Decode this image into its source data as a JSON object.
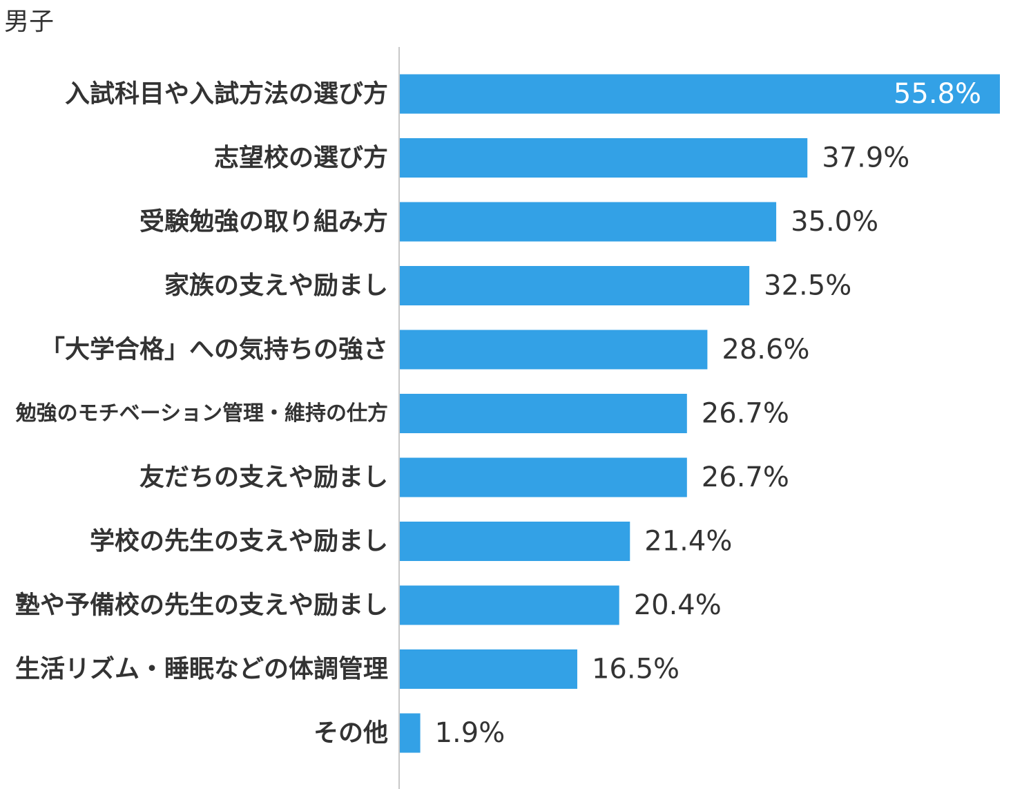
{
  "chart_data": {
    "type": "bar",
    "orientation": "horizontal",
    "title": "男子",
    "categories": [
      "入試科目や入試方法の選び方",
      "志望校の選び方",
      "受験勉強の取り組み方",
      "家族の支えや励まし",
      "「大学合格」への気持ちの強さ",
      "勉強のモチベーション管理・維持の仕方",
      "友だちの支えや励まし",
      "学校の先生の支えや励まし",
      "塾や予備校の先生の支えや励まし",
      "生活リズム・睡眠などの体調管理",
      "その他"
    ],
    "values": [
      55.8,
      37.9,
      35.0,
      32.5,
      28.6,
      26.7,
      26.7,
      21.4,
      20.4,
      16.5,
      1.9
    ],
    "value_labels": [
      "55.8%",
      "37.9%",
      "35.0%",
      "32.5%",
      "28.6%",
      "26.7%",
      "26.7%",
      "21.4%",
      "20.4%",
      "16.5%",
      "1.9%"
    ],
    "xlim": [
      0,
      55.8
    ],
    "grid": false,
    "legend": "none",
    "colors": {
      "bar": "#33a1e6",
      "axis": "#c8c8c8",
      "label_text": "#333333",
      "value_text": "#333333",
      "inside_value_text": "#ffffff"
    }
  }
}
